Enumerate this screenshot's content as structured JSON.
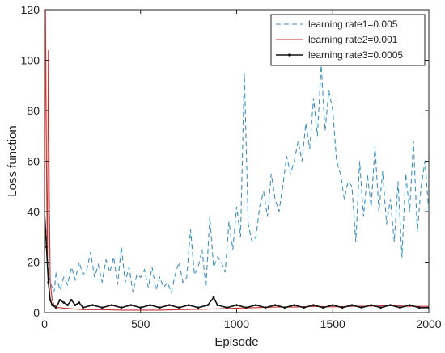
{
  "chart_data": {
    "type": "line",
    "title": "",
    "xlabel": "Episode",
    "ylabel": "Loss function",
    "xlim": [
      0,
      2000
    ],
    "ylim": [
      0,
      120
    ],
    "xticks": [
      0,
      500,
      1000,
      1500,
      2000
    ],
    "yticks": [
      0,
      20,
      40,
      60,
      80,
      100,
      120
    ],
    "grid": false,
    "legend_position": "top-right",
    "series": [
      {
        "name": "learning rate1=0.005",
        "color": "#3a8fbf",
        "style": "dashed",
        "x": [
          0,
          10,
          20,
          30,
          40,
          50,
          60,
          70,
          80,
          100,
          120,
          140,
          160,
          180,
          200,
          220,
          240,
          260,
          280,
          300,
          320,
          340,
          360,
          380,
          400,
          420,
          440,
          460,
          480,
          500,
          520,
          540,
          560,
          580,
          600,
          620,
          640,
          660,
          680,
          700,
          720,
          740,
          760,
          780,
          800,
          820,
          840,
          860,
          880,
          900,
          920,
          940,
          960,
          980,
          1000,
          1020,
          1040,
          1060,
          1080,
          1100,
          1120,
          1140,
          1160,
          1180,
          1200,
          1220,
          1240,
          1260,
          1280,
          1300,
          1320,
          1340,
          1360,
          1380,
          1400,
          1420,
          1440,
          1460,
          1480,
          1500,
          1520,
          1540,
          1560,
          1580,
          1600,
          1620,
          1640,
          1660,
          1680,
          1700,
          1720,
          1740,
          1760,
          1780,
          1800,
          1820,
          1840,
          1860,
          1880,
          1900,
          1920,
          1940,
          1960,
          1980,
          2000
        ],
        "values": [
          40,
          30,
          15,
          12,
          10,
          8,
          16,
          12,
          9,
          14,
          11,
          18,
          13,
          20,
          15,
          17,
          24,
          14,
          19,
          12,
          21,
          16,
          22,
          11,
          26,
          12,
          18,
          8,
          15,
          14,
          17,
          10,
          18,
          9,
          14,
          10,
          12,
          8,
          15,
          20,
          12,
          14,
          33,
          15,
          18,
          25,
          10,
          38,
          18,
          22,
          20,
          16,
          36,
          25,
          42,
          30,
          95,
          35,
          28,
          30,
          42,
          48,
          38,
          55,
          45,
          40,
          50,
          62,
          55,
          60,
          68,
          60,
          75,
          65,
          85,
          70,
          98,
          72,
          88,
          80,
          60,
          55,
          45,
          52,
          50,
          28,
          60,
          38,
          55,
          42,
          66,
          40,
          56,
          35,
          45,
          28,
          52,
          22,
          55,
          40,
          68,
          32,
          50,
          60,
          40
        ]
      },
      {
        "name": "learning rate2=0.001",
        "color": "#c8302c",
        "style": "solid",
        "x": [
          0,
          5,
          10,
          15,
          20,
          25,
          30,
          40,
          50,
          60,
          70,
          80,
          100,
          150,
          200,
          300,
          400,
          500,
          600,
          700,
          800,
          900,
          1000,
          1100,
          1200,
          1300,
          1400,
          1500,
          1600,
          1700,
          1800,
          1900,
          2000
        ],
        "values": [
          30,
          120,
          60,
          20,
          104,
          45,
          12,
          5,
          3,
          2.5,
          2,
          2,
          1.8,
          1.5,
          1.2,
          1.2,
          1,
          1,
          1,
          1.2,
          1.3,
          1.5,
          1.8,
          2,
          2.2,
          2.2,
          2.5,
          2.3,
          2.5,
          2.6,
          2.8,
          2.5,
          2.5
        ]
      },
      {
        "name": "learning rate3=0.0005",
        "color": "#111111",
        "style": "solid-marker",
        "x": [
          0,
          10,
          20,
          30,
          40,
          60,
          80,
          100,
          120,
          140,
          160,
          180,
          200,
          250,
          300,
          350,
          400,
          450,
          500,
          550,
          600,
          650,
          700,
          750,
          800,
          850,
          880,
          900,
          950,
          1000,
          1050,
          1100,
          1150,
          1200,
          1250,
          1300,
          1350,
          1400,
          1450,
          1500,
          1550,
          1600,
          1650,
          1700,
          1750,
          1800,
          1850,
          1900,
          1950,
          2000
        ],
        "values": [
          40,
          26,
          12,
          5,
          3,
          2,
          5,
          4,
          3,
          5,
          3,
          4,
          2,
          3,
          2,
          3,
          2,
          3,
          2,
          3,
          2,
          3,
          2,
          3,
          2,
          3,
          6,
          3,
          2,
          3,
          2,
          3,
          2,
          3,
          2,
          3,
          2,
          3,
          2,
          3,
          2,
          3,
          2,
          3,
          2,
          3,
          2,
          3,
          2,
          2
        ]
      }
    ]
  }
}
